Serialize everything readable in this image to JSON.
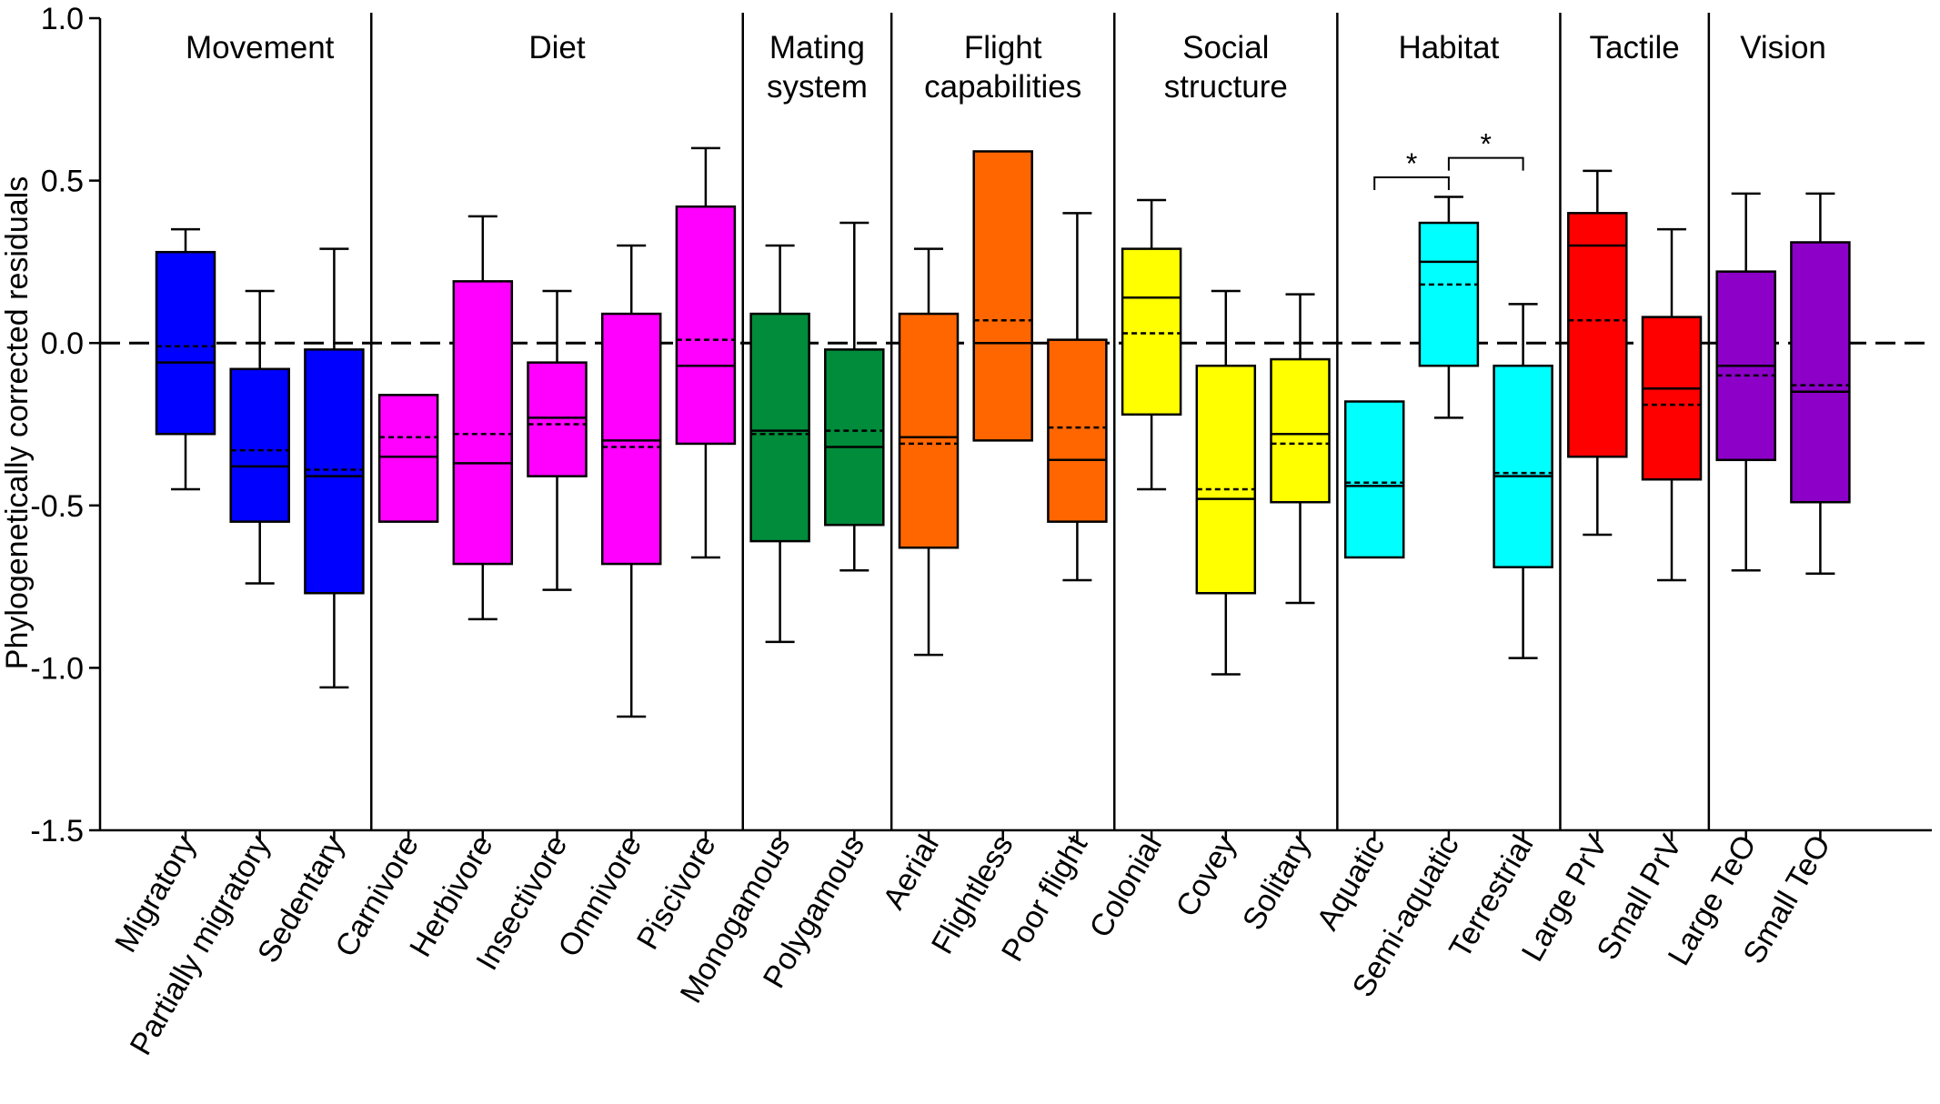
{
  "chart_data": {
    "type": "boxplot",
    "ylabel": "Phylogenetically corrected residuals",
    "ylim": [
      -1.5,
      1.0
    ],
    "yticks": [
      1.0,
      0.5,
      0.0,
      -0.5,
      -1.0,
      -1.5
    ],
    "ytick_labels": [
      "1.0",
      "0.5",
      "0.0",
      "-0.5",
      "-1.0",
      "-1.5"
    ],
    "reference_line": 0.0,
    "groups": [
      {
        "label_lines": [
          "Movement"
        ],
        "start": 0,
        "end": 2
      },
      {
        "label_lines": [
          "Diet"
        ],
        "start": 3,
        "end": 7
      },
      {
        "label_lines": [
          "Mating",
          "system"
        ],
        "start": 8,
        "end": 9
      },
      {
        "label_lines": [
          "Flight",
          "capabilities"
        ],
        "start": 10,
        "end": 12
      },
      {
        "label_lines": [
          "Social",
          "structure"
        ],
        "start": 13,
        "end": 15
      },
      {
        "label_lines": [
          "Habitat"
        ],
        "start": 16,
        "end": 18
      },
      {
        "label_lines": [
          "Tactile"
        ],
        "start": 19,
        "end": 20
      },
      {
        "label_lines": [
          "Vision"
        ],
        "start": 21,
        "end": 22
      }
    ],
    "boxes": [
      {
        "category": "Migratory",
        "color": "#0000ff",
        "whisker_low": -0.45,
        "q1": -0.28,
        "median": -0.06,
        "mean": -0.01,
        "q3": 0.28,
        "whisker_high": 0.35
      },
      {
        "category": "Partially migratory",
        "color": "#0000ff",
        "whisker_low": -0.74,
        "q1": -0.55,
        "median": -0.38,
        "mean": -0.33,
        "q3": -0.08,
        "whisker_high": 0.16
      },
      {
        "category": "Sedentary",
        "color": "#0000ff",
        "whisker_low": -1.06,
        "q1": -0.77,
        "median": -0.41,
        "mean": -0.39,
        "q3": -0.02,
        "whisker_high": 0.29
      },
      {
        "category": "Carnivore",
        "color": "#ff00ff",
        "whisker_low": null,
        "q1": -0.55,
        "median": -0.35,
        "mean": -0.29,
        "q3": -0.16,
        "whisker_high": null
      },
      {
        "category": "Herbivore",
        "color": "#ff00ff",
        "whisker_low": -0.85,
        "q1": -0.68,
        "median": -0.37,
        "mean": -0.28,
        "q3": 0.19,
        "whisker_high": 0.39
      },
      {
        "category": "Insectivore",
        "color": "#ff00ff",
        "whisker_low": -0.76,
        "q1": -0.41,
        "median": -0.23,
        "mean": -0.25,
        "q3": -0.06,
        "whisker_high": 0.16
      },
      {
        "category": "Omnivore",
        "color": "#ff00ff",
        "whisker_low": -1.15,
        "q1": -0.68,
        "median": -0.3,
        "mean": -0.32,
        "q3": 0.09,
        "whisker_high": 0.3
      },
      {
        "category": "Piscivore",
        "color": "#ff00ff",
        "whisker_low": -0.66,
        "q1": -0.31,
        "median": -0.07,
        "mean": 0.01,
        "q3": 0.42,
        "whisker_high": 0.6
      },
      {
        "category": "Monogamous",
        "color": "#008c3a",
        "whisker_low": -0.92,
        "q1": -0.61,
        "median": -0.27,
        "mean": -0.28,
        "q3": 0.09,
        "whisker_high": 0.3
      },
      {
        "category": "Polygamous",
        "color": "#008c3a",
        "whisker_low": -0.7,
        "q1": -0.56,
        "median": -0.32,
        "mean": -0.27,
        "q3": -0.02,
        "whisker_high": 0.37
      },
      {
        "category": "Aerial",
        "color": "#ff6600",
        "whisker_low": -0.96,
        "q1": -0.63,
        "median": -0.29,
        "mean": -0.31,
        "q3": 0.09,
        "whisker_high": 0.29
      },
      {
        "category": "Flightless",
        "color": "#ff6600",
        "whisker_low": null,
        "q1": -0.3,
        "median": 0.0,
        "mean": 0.07,
        "q3": 0.59,
        "whisker_high": null
      },
      {
        "category": "Poor flight",
        "color": "#ff6600",
        "whisker_low": -0.73,
        "q1": -0.55,
        "median": -0.36,
        "mean": -0.26,
        "q3": 0.01,
        "whisker_high": 0.4
      },
      {
        "category": "Colonial",
        "color": "#ffff00",
        "whisker_low": -0.45,
        "q1": -0.22,
        "median": 0.14,
        "mean": 0.03,
        "q3": 0.29,
        "whisker_high": 0.44
      },
      {
        "category": "Covey",
        "color": "#ffff00",
        "whisker_low": -1.02,
        "q1": -0.77,
        "median": -0.48,
        "mean": -0.45,
        "q3": -0.07,
        "whisker_high": 0.16
      },
      {
        "category": "Solitary",
        "color": "#ffff00",
        "whisker_low": -0.8,
        "q1": -0.49,
        "median": -0.28,
        "mean": -0.31,
        "q3": -0.05,
        "whisker_high": 0.15
      },
      {
        "category": "Aquatic",
        "color": "#00ffff",
        "whisker_low": null,
        "q1": -0.66,
        "median": -0.44,
        "mean": -0.43,
        "q3": -0.18,
        "whisker_high": null
      },
      {
        "category": "Semi-aquatic",
        "color": "#00ffff",
        "whisker_low": -0.23,
        "q1": -0.07,
        "median": 0.25,
        "mean": 0.18,
        "q3": 0.37,
        "whisker_high": 0.45
      },
      {
        "category": "Terrestrial",
        "color": "#00ffff",
        "whisker_low": -0.97,
        "q1": -0.69,
        "median": -0.41,
        "mean": -0.4,
        "q3": -0.07,
        "whisker_high": 0.12
      },
      {
        "category": "Large PrV",
        "color": "#ff0000",
        "whisker_low": -0.59,
        "q1": -0.35,
        "median": 0.3,
        "mean": 0.07,
        "q3": 0.4,
        "whisker_high": 0.53
      },
      {
        "category": "Small PrV",
        "color": "#ff0000",
        "whisker_low": -0.73,
        "q1": -0.42,
        "median": -0.14,
        "mean": -0.19,
        "q3": 0.08,
        "whisker_high": 0.35
      },
      {
        "category": "Large TeO",
        "color": "#8c00c8",
        "whisker_low": -0.7,
        "q1": -0.36,
        "median": -0.07,
        "mean": -0.1,
        "q3": 0.22,
        "whisker_high": 0.46
      },
      {
        "category": "Small TeO",
        "color": "#8c00c8",
        "whisker_low": -0.71,
        "q1": -0.49,
        "median": -0.15,
        "mean": -0.13,
        "q3": 0.31,
        "whisker_high": 0.46
      }
    ],
    "significance": [
      {
        "from": 16,
        "to": 17,
        "label": "*",
        "y": 0.51
      },
      {
        "from": 17,
        "to": 18,
        "label": "*",
        "y": 0.57
      }
    ],
    "legend": "none",
    "grid": false
  }
}
